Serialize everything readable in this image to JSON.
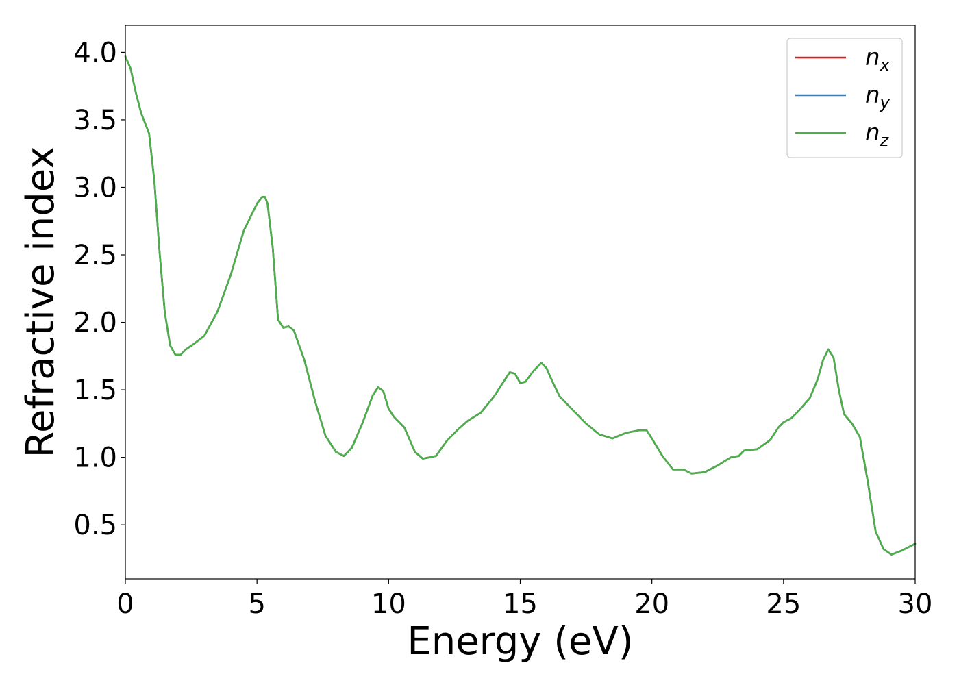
{
  "chart_data": {
    "type": "line",
    "title": "",
    "xlabel": "Energy (eV)",
    "ylabel": "Refractive index",
    "xlim": [
      0,
      30
    ],
    "ylim": [
      0.1,
      4.2
    ],
    "xticks": [
      0,
      5,
      10,
      15,
      20,
      25,
      30
    ],
    "xtick_labels": [
      "0",
      "5",
      "10",
      "15",
      "20",
      "25",
      "30"
    ],
    "yticks": [
      0.5,
      1.0,
      1.5,
      2.0,
      2.5,
      3.0,
      3.5,
      4.0
    ],
    "ytick_labels": [
      "0.5",
      "1.0",
      "1.5",
      "2.0",
      "2.5",
      "3.0",
      "3.5",
      "4.0"
    ],
    "grid": false,
    "legend_position": "top-right",
    "x": [
      0,
      0.2,
      0.4,
      0.6,
      0.9,
      1.1,
      1.3,
      1.5,
      1.7,
      1.9,
      2.1,
      2.3,
      2.6,
      3.0,
      3.5,
      4.0,
      4.5,
      5.0,
      5.2,
      5.3,
      5.4,
      5.6,
      5.8,
      6.0,
      6.2,
      6.4,
      6.8,
      7.2,
      7.6,
      8.0,
      8.3,
      8.6,
      9.0,
      9.4,
      9.6,
      9.8,
      10.0,
      10.2,
      10.6,
      11.0,
      11.3,
      11.8,
      12.2,
      12.6,
      13.0,
      13.5,
      14.0,
      14.4,
      14.6,
      14.8,
      15.0,
      15.2,
      15.5,
      15.8,
      16.0,
      16.2,
      16.5,
      17.0,
      17.5,
      18.0,
      18.5,
      19.0,
      19.5,
      19.8,
      20.0,
      20.4,
      20.8,
      21.2,
      21.5,
      22.0,
      22.5,
      23.0,
      23.3,
      23.5,
      24.0,
      24.5,
      24.8,
      25.0,
      25.3,
      25.6,
      26.0,
      26.3,
      26.5,
      26.7,
      26.9,
      27.1,
      27.3,
      27.6,
      27.9,
      28.2,
      28.5,
      28.8,
      29.1,
      29.5,
      30.0
    ],
    "series": [
      {
        "name": "n_x",
        "label_base": "n",
        "label_sub": "x",
        "color": "#e41a1c",
        "values": [
          3.97,
          3.88,
          3.7,
          3.55,
          3.4,
          3.05,
          2.52,
          2.07,
          1.83,
          1.76,
          1.76,
          1.8,
          1.84,
          1.9,
          2.08,
          2.35,
          2.68,
          2.88,
          2.93,
          2.93,
          2.88,
          2.55,
          2.02,
          1.96,
          1.97,
          1.94,
          1.72,
          1.42,
          1.16,
          1.04,
          1.01,
          1.07,
          1.25,
          1.46,
          1.52,
          1.49,
          1.36,
          1.3,
          1.22,
          1.04,
          0.99,
          1.01,
          1.12,
          1.2,
          1.27,
          1.33,
          1.45,
          1.57,
          1.63,
          1.62,
          1.55,
          1.56,
          1.64,
          1.7,
          1.66,
          1.57,
          1.45,
          1.35,
          1.25,
          1.17,
          1.14,
          1.18,
          1.2,
          1.2,
          1.14,
          1.01,
          0.91,
          0.91,
          0.88,
          0.89,
          0.94,
          1.0,
          1.01,
          1.05,
          1.06,
          1.13,
          1.22,
          1.26,
          1.29,
          1.35,
          1.44,
          1.58,
          1.72,
          1.8,
          1.74,
          1.5,
          1.32,
          1.25,
          1.15,
          0.82,
          0.45,
          0.32,
          0.28,
          0.31,
          0.36
        ]
      },
      {
        "name": "n_y",
        "label_base": "n",
        "label_sub": "y",
        "color": "#377eb8",
        "values": [
          3.97,
          3.88,
          3.7,
          3.55,
          3.4,
          3.05,
          2.52,
          2.07,
          1.83,
          1.76,
          1.76,
          1.8,
          1.84,
          1.9,
          2.08,
          2.35,
          2.68,
          2.88,
          2.93,
          2.93,
          2.88,
          2.55,
          2.02,
          1.96,
          1.97,
          1.94,
          1.72,
          1.42,
          1.16,
          1.04,
          1.01,
          1.07,
          1.25,
          1.46,
          1.52,
          1.49,
          1.36,
          1.3,
          1.22,
          1.04,
          0.99,
          1.01,
          1.12,
          1.2,
          1.27,
          1.33,
          1.45,
          1.57,
          1.63,
          1.62,
          1.55,
          1.56,
          1.64,
          1.7,
          1.66,
          1.57,
          1.45,
          1.35,
          1.25,
          1.17,
          1.14,
          1.18,
          1.2,
          1.2,
          1.14,
          1.01,
          0.91,
          0.91,
          0.88,
          0.89,
          0.94,
          1.0,
          1.01,
          1.05,
          1.06,
          1.13,
          1.22,
          1.26,
          1.29,
          1.35,
          1.44,
          1.58,
          1.72,
          1.8,
          1.74,
          1.5,
          1.32,
          1.25,
          1.15,
          0.82,
          0.45,
          0.32,
          0.28,
          0.31,
          0.36
        ]
      },
      {
        "name": "n_z",
        "label_base": "n",
        "label_sub": "z",
        "color": "#4daf4a",
        "values": [
          3.97,
          3.88,
          3.7,
          3.55,
          3.4,
          3.05,
          2.52,
          2.07,
          1.83,
          1.76,
          1.76,
          1.8,
          1.84,
          1.9,
          2.08,
          2.35,
          2.68,
          2.88,
          2.93,
          2.93,
          2.88,
          2.55,
          2.02,
          1.96,
          1.97,
          1.94,
          1.72,
          1.42,
          1.16,
          1.04,
          1.01,
          1.07,
          1.25,
          1.46,
          1.52,
          1.49,
          1.36,
          1.3,
          1.22,
          1.04,
          0.99,
          1.01,
          1.12,
          1.2,
          1.27,
          1.33,
          1.45,
          1.57,
          1.63,
          1.62,
          1.55,
          1.56,
          1.64,
          1.7,
          1.66,
          1.57,
          1.45,
          1.35,
          1.25,
          1.17,
          1.14,
          1.18,
          1.2,
          1.2,
          1.14,
          1.01,
          0.91,
          0.91,
          0.88,
          0.89,
          0.94,
          1.0,
          1.01,
          1.05,
          1.06,
          1.13,
          1.22,
          1.26,
          1.29,
          1.35,
          1.44,
          1.58,
          1.72,
          1.8,
          1.74,
          1.5,
          1.32,
          1.25,
          1.15,
          0.82,
          0.45,
          0.32,
          0.28,
          0.31,
          0.36
        ]
      }
    ]
  }
}
